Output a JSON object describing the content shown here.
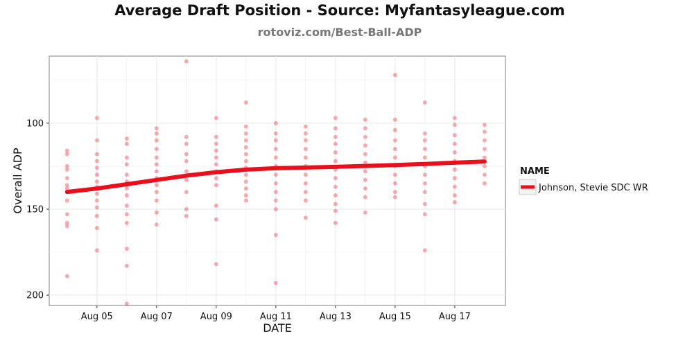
{
  "chart_data": {
    "type": "scatter",
    "title": "Average Draft Position - Source: Myfantasyleague.com",
    "subtitle": "rotoviz.com/Best-Ball-ADP",
    "xlabel": "DATE",
    "ylabel": "Overall ADP",
    "x_tick_labels": [
      "Aug 05",
      "Aug 07",
      "Aug 09",
      "Aug 11",
      "Aug 13",
      "Aug 15",
      "Aug 17"
    ],
    "x_ticks": [
      "2015-08-05",
      "2015-08-07",
      "2015-08-09",
      "2015-08-11",
      "2015-08-13",
      "2015-08-15",
      "2015-08-17"
    ],
    "xlim": [
      "2015-08-03.4",
      "2015-08-18.7"
    ],
    "y_tick_labels": [
      "100",
      "150",
      "200"
    ],
    "y_ticks": [
      100,
      150,
      200
    ],
    "ylim": [
      206,
      61
    ],
    "y_reversed": true,
    "grid": true,
    "legend": {
      "title": "NAME",
      "position": "right"
    },
    "colors": {
      "series": "#e8101c",
      "grid": "#ebebeb",
      "panel_border": "#7f7f7f"
    },
    "series": [
      {
        "name": "Johnson, Stevie SDC WR",
        "points": [
          {
            "date": "2015-08-04",
            "adp": [
              116,
              118,
              125,
              127,
              132,
              136,
              138,
              140,
              145,
              153,
              158,
              160,
              189
            ]
          },
          {
            "date": "2015-08-05",
            "adp": [
              97,
              110,
              118,
              122,
              126,
              130,
              134,
              137,
              141,
              145,
              149,
              154,
              161,
              174
            ]
          },
          {
            "date": "2015-08-06",
            "adp": [
              109,
              112,
              120,
              124,
              130,
              134,
              138,
              142,
              148,
              153,
              158,
              173,
              183,
              205
            ]
          },
          {
            "date": "2015-08-07",
            "adp": [
              103,
              106,
              110,
              115,
              120,
              124,
              128,
              132,
              136,
              140,
              145,
              152,
              159
            ]
          },
          {
            "date": "2015-08-08",
            "adp": [
              64,
              108,
              112,
              118,
              122,
              128,
              133,
              140,
              150,
              154
            ]
          },
          {
            "date": "2015-08-09",
            "adp": [
              97,
              108,
              112,
              116,
              120,
              124,
              128,
              132,
              136,
              148,
              156,
              182
            ]
          },
          {
            "date": "2015-08-10",
            "adp": [
              88,
              102,
              106,
              110,
              114,
              118,
              122,
              126,
              130,
              134,
              138,
              142,
              145
            ]
          },
          {
            "date": "2015-08-11",
            "adp": [
              100,
              106,
              110,
              115,
              120,
              125,
              130,
              135,
              140,
              145,
              150,
              165,
              193
            ]
          },
          {
            "date": "2015-08-12",
            "adp": [
              102,
              106,
              110,
              115,
              120,
              125,
              130,
              135,
              140,
              145,
              155
            ]
          },
          {
            "date": "2015-08-13",
            "adp": [
              97,
              103,
              108,
              112,
              117,
              122,
              127,
              132,
              137,
              142,
              147,
              151,
              158
            ]
          },
          {
            "date": "2015-08-14",
            "adp": [
              98,
              103,
              108,
              113,
              118,
              123,
              128,
              133,
              138,
              143,
              152
            ]
          },
          {
            "date": "2015-08-15",
            "adp": [
              72,
              98,
              104,
              110,
              115,
              120,
              125,
              130,
              135,
              140,
              143
            ]
          },
          {
            "date": "2015-08-16",
            "adp": [
              88,
              106,
              110,
              115,
              120,
              125,
              130,
              135,
              140,
              147,
              153,
              174
            ]
          },
          {
            "date": "2015-08-17",
            "adp": [
              97,
              101,
              107,
              112,
              117,
              122,
              127,
              132,
              137,
              142,
              146
            ]
          },
          {
            "date": "2015-08-18",
            "adp": [
              101,
              105,
              110,
              115,
              120,
              125,
              130,
              135
            ]
          }
        ],
        "trend": [
          {
            "date": "2015-08-04",
            "adp": 140
          },
          {
            "date": "2015-08-05",
            "adp": 138
          },
          {
            "date": "2015-08-06",
            "adp": 135.5
          },
          {
            "date": "2015-08-07",
            "adp": 133
          },
          {
            "date": "2015-08-08",
            "adp": 130.5
          },
          {
            "date": "2015-08-09",
            "adp": 128.5
          },
          {
            "date": "2015-08-10",
            "adp": 127
          },
          {
            "date": "2015-08-11",
            "adp": 126.2
          },
          {
            "date": "2015-08-12",
            "adp": 125.8
          },
          {
            "date": "2015-08-13",
            "adp": 125.4
          },
          {
            "date": "2015-08-14",
            "adp": 124.9
          },
          {
            "date": "2015-08-15",
            "adp": 124.3
          },
          {
            "date": "2015-08-16",
            "adp": 123.7
          },
          {
            "date": "2015-08-17",
            "adp": 123
          },
          {
            "date": "2015-08-18",
            "adp": 122.3
          }
        ]
      }
    ]
  }
}
